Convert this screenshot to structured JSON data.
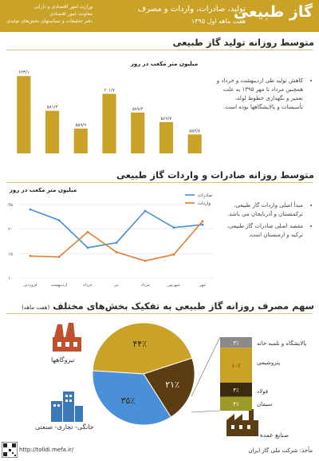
{
  "header": {
    "title": "گاز طبیعی",
    "subtitle": "تولید، صادرات، واردات و مصرف",
    "period": "هفت ماهه اول ۱۳۹۵",
    "org_lines": [
      "وزارت امور اقتصادی و دارایی",
      "معاونت امور اقتصادی",
      "دفتر تحقیقات و سیاستهای بخش‌های تولیدی"
    ],
    "colors": {
      "accent": "#c9a227",
      "bar": "#c9a227",
      "exports": "#4a90d9",
      "imports": "#e57c2e",
      "brown": "#5a3d12"
    }
  },
  "section1": {
    "title": "متوسط روزانه تولید گاز طبیعی",
    "bullet": "کاهش تولید طی اردیبهشت و خرداد و همچنین مرداد تا مهر ۱۳۹۵ به علت تعمیر و نگهداری خطوط لوله، تأسیسات و پالایشگاهها بوده است."
  },
  "section2": {
    "title": "متوسط روزانه صادرات و واردات گاز طبیعی",
    "bullets": [
      "مبدأ اصلی واردات گاز طبیعی، ترکمنستان و آذربایجان می باشد.",
      "مقصد اصلی صادرات گاز طبیعی، ترکیه و ارمنستان است."
    ]
  },
  "section3": {
    "title": "سهم مصرف روزانه گاز طبیعی به تفکیک بخش‌های مختلف",
    "title_note": "(هفت ماهه)",
    "icons": [
      {
        "name": "power-plant-icon",
        "label": "نیروگاهها"
      },
      {
        "name": "buildings-icon",
        "label": "خانگی- تجاری- صنعتی"
      },
      {
        "name": "factory-icon",
        "label": "صنایع عمده"
      }
    ]
  },
  "footer": {
    "url": "http://tolidi.mefa.ir/",
    "source": "مأخذ: شرکت ملی گاز ایران"
  },
  "chart_data": [
    {
      "type": "bar",
      "title": "میلیون متر مکعب در روز",
      "categories": [
        "فروردین",
        "اردیبهشت",
        "خرداد",
        "تیر",
        "مرداد",
        "شهریور",
        "مهر"
      ],
      "values": [
        623.1,
        581.3,
        559.9,
        601.7,
        579.2,
        567.7,
        552.8
      ],
      "value_labels": [
        "۶۲۳/۱",
        "۵۸۱/۳",
        "۵۵۹/۹",
        "۶۰۱/۷",
        "۵۷۹/۲",
        "۵۶۷/۷",
        "۵۵۲/۸"
      ],
      "ylim": [
        530,
        630
      ]
    },
    {
      "type": "line",
      "title": "میلیون متر مکعب در روز",
      "categories": [
        "فروردین",
        "اردیبهشت",
        "خرداد",
        "تیر",
        "مرداد",
        "شهریور",
        "مهر"
      ],
      "series": [
        {
          "name": "صادرات",
          "color": "#4a90d9",
          "values": [
            24.0,
            21.8,
            16.2,
            17.2,
            23.7,
            20.3,
            20.9
          ]
        },
        {
          "name": "واردات",
          "color": "#e57c2e",
          "values": [
            14.5,
            14.3,
            19.4,
            15.3,
            13.5,
            14.8,
            21.6
          ]
        }
      ],
      "yticks": [
        10,
        15,
        20,
        25
      ],
      "ytick_labels": [
        "۱۰",
        "۱۵",
        "۲۰",
        "۲۵"
      ],
      "ylim": [
        10,
        25
      ]
    },
    {
      "type": "pie",
      "slices": [
        {
          "label": "نیروگاهها",
          "value": 44,
          "value_label": "۴۴٪",
          "color": "#c9a227"
        },
        {
          "label": "صنایع عمده",
          "value": 21,
          "value_label": "۲۱٪",
          "color": "#5a3d12"
        },
        {
          "label": "خانگی- تجاری- صنعتی",
          "value": 35,
          "value_label": "۳۵٪",
          "color": "#4a90d9"
        }
      ]
    },
    {
      "type": "bar",
      "orientation": "stacked-vertical",
      "categories": [
        "پالایشگاه و تلمبه خانه",
        "پتروشیمی",
        "فولاد",
        "سیمان"
      ],
      "values": [
        3,
        10,
        4,
        4
      ],
      "value_labels": [
        "۳٪",
        "۱۰٪",
        "۴٪",
        "۴٪"
      ],
      "colors": [
        "#8a8a8a",
        "#c9a227",
        "#3b2a10",
        "#9e9a2a"
      ]
    }
  ]
}
